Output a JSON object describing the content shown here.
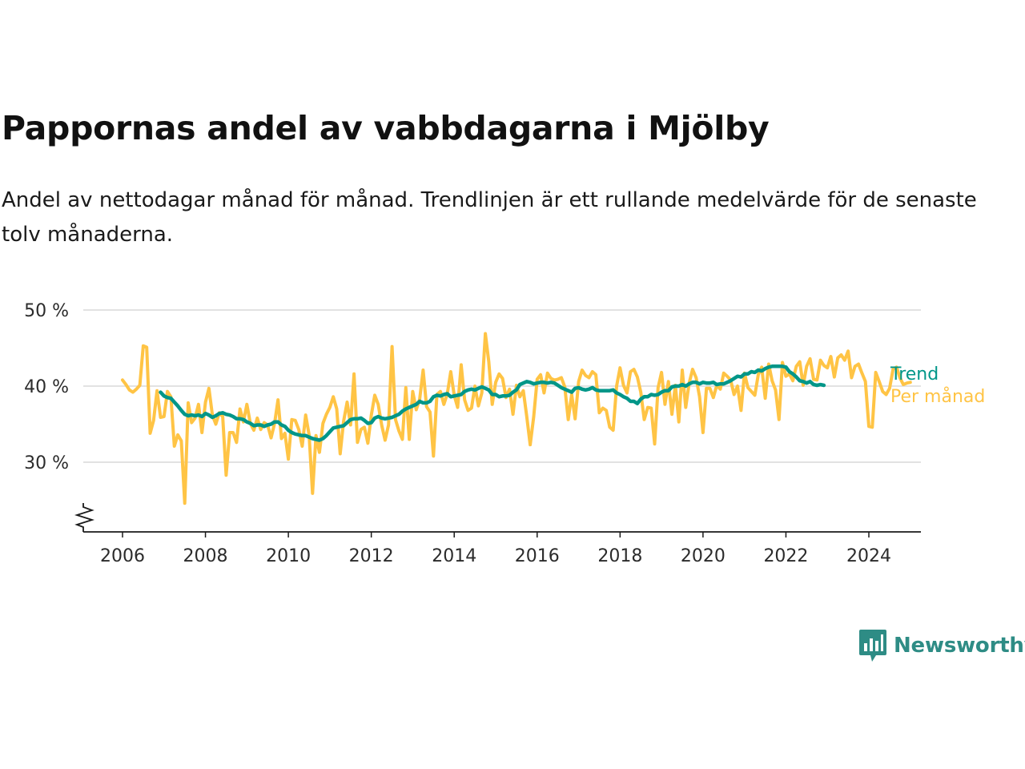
{
  "title": "Pappornas andel av vabbdagarna i Mjölby",
  "subtitle": "Andel av nettodagar månad för månad. Trendlinjen är ett rullande medelvärde för de senaste tolv månaderna.",
  "brand": {
    "name": "Newsworthy",
    "color": "#2e8c85",
    "icon": "newsworthy-chart-bubble-icon"
  },
  "colors": {
    "trend": "#009688",
    "monthly": "#ffc445",
    "grid": "#d9d9d9",
    "axis": "#1a1a1a"
  },
  "chart_data": {
    "type": "line",
    "ylabel": "",
    "xlabel": "",
    "ylim": [
      21,
      50
    ],
    "xlim": [
      2005.5,
      2025.2
    ],
    "y_axis_break": true,
    "grid": "horizontal",
    "yticks": [
      {
        "value": 30,
        "label": "30 %"
      },
      {
        "value": 40,
        "label": "40 %"
      },
      {
        "value": 50,
        "label": "50 %"
      }
    ],
    "xticks": [
      {
        "value": 2006,
        "label": "2006"
      },
      {
        "value": 2008,
        "label": "2008"
      },
      {
        "value": 2010,
        "label": "2010"
      },
      {
        "value": 2012,
        "label": "2012"
      },
      {
        "value": 2014,
        "label": "2014"
      },
      {
        "value": 2016,
        "label": "2016"
      },
      {
        "value": 2018,
        "label": "2018"
      },
      {
        "value": 2020,
        "label": "2020"
      },
      {
        "value": 2022,
        "label": "2022"
      },
      {
        "value": 2024,
        "label": "2024"
      }
    ],
    "legend": "right-end-labels",
    "series": [
      {
        "name": "Per månad",
        "color": "#ffc445",
        "start": "2006-01",
        "values": [
          40.8,
          40.2,
          39.5,
          39.2,
          39.6,
          40.1,
          45.3,
          45.1,
          33.8,
          35.5,
          39.4,
          35.9,
          36.0,
          39.3,
          38.6,
          32.1,
          33.6,
          32.8,
          24.6,
          37.8,
          35.2,
          35.8,
          37.6,
          33.9,
          37.9,
          39.7,
          36.2,
          35.0,
          36.5,
          36.0,
          28.3,
          33.9,
          33.9,
          32.6,
          37.0,
          35.3,
          37.6,
          35.1,
          34.2,
          35.8,
          34.3,
          35.2,
          34.9,
          33.2,
          35.1,
          38.2,
          33.1,
          33.8,
          30.4,
          35.6,
          35.5,
          34.3,
          32.1,
          36.2,
          33.6,
          25.9,
          33.5,
          31.3,
          35.1,
          36.3,
          37.2,
          38.6,
          37.0,
          31.1,
          35.4,
          37.9,
          34.9,
          41.6,
          32.6,
          34.3,
          34.6,
          32.5,
          36.2,
          38.8,
          37.6,
          34.9,
          32.9,
          34.9,
          45.2,
          35.6,
          34.1,
          33.0,
          39.8,
          33.0,
          39.3,
          36.9,
          38.3,
          42.1,
          37.3,
          36.6,
          30.8,
          38.9,
          39.3,
          37.6,
          39.0,
          41.9,
          38.8,
          37.2,
          42.8,
          38.2,
          36.8,
          37.1,
          40.0,
          37.4,
          39.1,
          46.9,
          43.2,
          37.6,
          40.5,
          41.6,
          41.0,
          38.5,
          39.6,
          36.3,
          40.1,
          38.6,
          39.4,
          36.0,
          32.3,
          36.0,
          40.9,
          41.5,
          39.1,
          41.7,
          41.0,
          40.8,
          40.9,
          41.1,
          39.9,
          35.6,
          38.9,
          35.7,
          40.6,
          42.1,
          41.4,
          41.1,
          41.9,
          41.5,
          36.5,
          37.1,
          36.8,
          34.6,
          34.2,
          40.0,
          42.4,
          40.1,
          39.1,
          41.9,
          42.2,
          41.2,
          39.2,
          35.6,
          37.2,
          37.1,
          32.4,
          39.8,
          41.8,
          37.6,
          40.6,
          36.3,
          40.1,
          35.3,
          42.1,
          37.2,
          40.4,
          42.2,
          41.1,
          38.6,
          33.9,
          39.7,
          39.7,
          38.5,
          40.1,
          39.6,
          41.7,
          41.3,
          40.8,
          38.9,
          40.0,
          36.8,
          41.7,
          39.8,
          39.3,
          38.8,
          41.5,
          42.5,
          38.4,
          42.9,
          40.7,
          39.5,
          35.6,
          43.1,
          41.3,
          41.6,
          40.7,
          42.6,
          43.2,
          40.1,
          42.6,
          43.6,
          40.9,
          40.8,
          43.4,
          42.7,
          42.4,
          43.9,
          41.2,
          43.7,
          44.1,
          43.4,
          44.6,
          41.1,
          42.6,
          42.9,
          41.7,
          40.6,
          34.7,
          34.6,
          41.8,
          40.6,
          39.3,
          38.9,
          39.7,
          42.2,
          42.5,
          41.1,
          40.2,
          40.4,
          40.5
        ]
      },
      {
        "name": "Trend",
        "color": "#009688",
        "start": "2006-12",
        "values": [
          39.2,
          38.7,
          38.5,
          38.4,
          37.9,
          37.4,
          36.8,
          36.3,
          36.1,
          36.2,
          36.1,
          36.2,
          36.0,
          36.4,
          36.2,
          35.9,
          36.1,
          36.4,
          36.5,
          36.3,
          36.2,
          36.0,
          35.7,
          35.7,
          35.6,
          35.3,
          35.1,
          34.8,
          34.9,
          34.9,
          34.7,
          34.9,
          35.0,
          35.3,
          35.3,
          34.9,
          34.7,
          34.2,
          33.9,
          33.7,
          33.6,
          33.5,
          33.5,
          33.3,
          33.1,
          33.0,
          32.9,
          33.1,
          33.5,
          34.0,
          34.5,
          34.6,
          34.7,
          34.8,
          35.2,
          35.6,
          35.7,
          35.7,
          35.8,
          35.5,
          35.1,
          35.2,
          35.8,
          36.0,
          35.8,
          35.7,
          35.8,
          35.9,
          36.1,
          36.3,
          36.7,
          37.0,
          37.2,
          37.4,
          37.6,
          38.0,
          37.8,
          37.8,
          38.0,
          38.6,
          38.8,
          38.7,
          38.9,
          39.0,
          38.6,
          38.7,
          38.8,
          38.9,
          39.3,
          39.5,
          39.6,
          39.5,
          39.7,
          39.9,
          39.7,
          39.5,
          38.9,
          38.9,
          38.6,
          38.7,
          38.7,
          38.8,
          39.2,
          39.5,
          40.2,
          40.4,
          40.6,
          40.5,
          40.3,
          40.4,
          40.5,
          40.5,
          40.4,
          40.5,
          40.4,
          40.1,
          39.8,
          39.6,
          39.4,
          39.2,
          39.7,
          39.8,
          39.6,
          39.5,
          39.6,
          39.8,
          39.5,
          39.4,
          39.4,
          39.4,
          39.4,
          39.5,
          39.1,
          38.9,
          38.6,
          38.4,
          38.0,
          38.0,
          37.7,
          38.3,
          38.6,
          38.6,
          38.9,
          38.8,
          38.9,
          39.2,
          39.4,
          39.4,
          39.9,
          40.0,
          40.0,
          40.2,
          40.0,
          40.3,
          40.5,
          40.5,
          40.3,
          40.5,
          40.4,
          40.4,
          40.5,
          40.2,
          40.3,
          40.3,
          40.5,
          40.7,
          41.0,
          41.3,
          41.2,
          41.6,
          41.6,
          41.9,
          41.8,
          42.1,
          42.0,
          42.3,
          42.5,
          42.6,
          42.6,
          42.6,
          42.6,
          42.5,
          41.9,
          41.6,
          41.2,
          40.7,
          40.6,
          40.4,
          40.6,
          40.2,
          40.1,
          40.2,
          40.1
        ]
      }
    ]
  }
}
